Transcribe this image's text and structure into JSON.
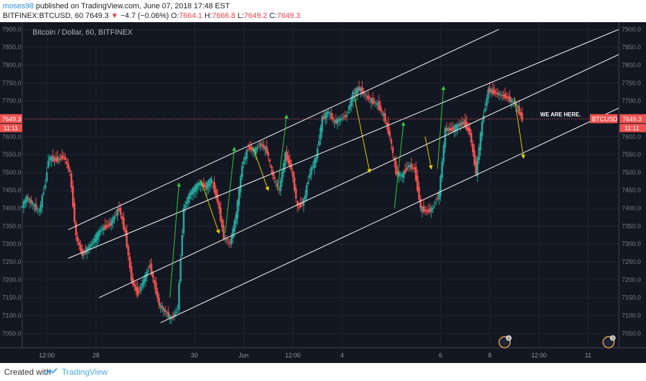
{
  "header": {
    "author": "moses98",
    "published_text": "published on TradingView.com, June 07, 2018 17:48 EST",
    "symbol": "BITFINEX:BTCUSD, 60",
    "price": "7649.3",
    "change_arrow": "▼",
    "change": "−4.7 (−0.06%)",
    "o_label": "O:",
    "o_value": "7664.1",
    "h_label": "H:",
    "h_value": "7666.8",
    "l_label": "L:",
    "l_value": "7649.2",
    "c_label": "C:",
    "c_value": "7649.3"
  },
  "footer": {
    "created_with": "Created with",
    "brand": "TradingView"
  },
  "colors": {
    "background": "#131722",
    "up": "#26a69a",
    "down": "#ef5350",
    "channel": "#ffffff",
    "green_arrow": "#2ecc40",
    "yellow_arrow": "#e5d200",
    "price_line": "#ef5350",
    "grid": "#1f2430"
  },
  "chart_data": {
    "type": "candlestick",
    "title": "Bitcoin / Dollar, 60, BITFINEX",
    "ylim": [
      7010,
      7920
    ],
    "y_ticks": [
      7050,
      7100,
      7150,
      7200,
      7250,
      7300,
      7350,
      7400,
      7450,
      7500,
      7550,
      7600,
      7650,
      7700,
      7750,
      7800,
      7850,
      7900
    ],
    "y_tick_labels": [
      "7050.0",
      "7100.0",
      "7150.0",
      "7200.0",
      "7250.0",
      "7300.0",
      "7350.0",
      "7400.0",
      "7450.0",
      "7500.0",
      "7550.0",
      "7600.0",
      "7650.0",
      "7700.0",
      "7750.0",
      "7800.0",
      "7850.0",
      "7900.0"
    ],
    "x_range": [
      0,
      194
    ],
    "x_ticks": [
      {
        "x": 8,
        "label": "12:00"
      },
      {
        "x": 24,
        "label": "28"
      },
      {
        "x": 56,
        "label": "30"
      },
      {
        "x": 72,
        "label": "Jun"
      },
      {
        "x": 88,
        "label": "12:00"
      },
      {
        "x": 104,
        "label": "4"
      },
      {
        "x": 136,
        "label": "6"
      },
      {
        "x": 152,
        "label": "8"
      },
      {
        "x": 168,
        "label": "12:00"
      },
      {
        "x": 184,
        "label": "11"
      }
    ],
    "last_price": 7649.3,
    "last_price_label": "7649.3",
    "countdown": "11:11",
    "symbol_tag": "BTCUSD",
    "annotation": "WE ARE HERE.",
    "event_badges": [
      "4",
      "3"
    ],
    "path_points": [
      [
        0,
        7400
      ],
      [
        2,
        7430
      ],
      [
        4,
        7410
      ],
      [
        6,
        7390
      ],
      [
        8,
        7470
      ],
      [
        9,
        7540
      ],
      [
        12,
        7535
      ],
      [
        14,
        7545
      ],
      [
        16,
        7500
      ],
      [
        18,
        7320
      ],
      [
        20,
        7270
      ],
      [
        23,
        7300
      ],
      [
        26,
        7340
      ],
      [
        29,
        7355
      ],
      [
        32,
        7400
      ],
      [
        34,
        7330
      ],
      [
        36,
        7200
      ],
      [
        38,
        7160
      ],
      [
        40,
        7200
      ],
      [
        42,
        7240
      ],
      [
        45,
        7130
      ],
      [
        47,
        7110
      ],
      [
        49,
        7090
      ],
      [
        51,
        7120
      ],
      [
        53,
        7400
      ],
      [
        55,
        7440
      ],
      [
        58,
        7470
      ],
      [
        60,
        7460
      ],
      [
        62,
        7480
      ],
      [
        64,
        7420
      ],
      [
        66,
        7320
      ],
      [
        68,
        7300
      ],
      [
        70,
        7380
      ],
      [
        72,
        7520
      ],
      [
        74,
        7570
      ],
      [
        76,
        7560
      ],
      [
        78,
        7580
      ],
      [
        80,
        7560
      ],
      [
        82,
        7490
      ],
      [
        84,
        7450
      ],
      [
        86,
        7550
      ],
      [
        88,
        7510
      ],
      [
        90,
        7400
      ],
      [
        92,
        7420
      ],
      [
        94,
        7500
      ],
      [
        96,
        7540
      ],
      [
        98,
        7650
      ],
      [
        100,
        7670
      ],
      [
        102,
        7640
      ],
      [
        104,
        7650
      ],
      [
        106,
        7660
      ],
      [
        108,
        7720
      ],
      [
        110,
        7735
      ],
      [
        112,
        7715
      ],
      [
        114,
        7700
      ],
      [
        116,
        7690
      ],
      [
        118,
        7660
      ],
      [
        120,
        7600
      ],
      [
        122,
        7500
      ],
      [
        124,
        7490
      ],
      [
        126,
        7520
      ],
      [
        128,
        7510
      ],
      [
        130,
        7400
      ],
      [
        132,
        7390
      ],
      [
        134,
        7400
      ],
      [
        136,
        7440
      ],
      [
        138,
        7620
      ],
      [
        140,
        7620
      ],
      [
        142,
        7630
      ],
      [
        144,
        7640
      ],
      [
        146,
        7610
      ],
      [
        148,
        7500
      ],
      [
        150,
        7640
      ],
      [
        152,
        7730
      ],
      [
        155,
        7720
      ],
      [
        158,
        7710
      ],
      [
        161,
        7690
      ],
      [
        163,
        7649.3
      ]
    ],
    "channel_lines": [
      {
        "x1": 15,
        "y1": 7340,
        "x2": 155,
        "y2": 7900
      },
      {
        "x1": 15,
        "y1": 7260,
        "x2": 194,
        "y2": 7900
      },
      {
        "x1": 25,
        "y1": 7150,
        "x2": 194,
        "y2": 7830
      },
      {
        "x1": 45,
        "y1": 7080,
        "x2": 194,
        "y2": 7680
      }
    ],
    "arrows": [
      {
        "color": "green",
        "x1": 48,
        "y1": 7150,
        "x2": 51,
        "y2": 7470
      },
      {
        "color": "yellow",
        "x1": 58,
        "y1": 7480,
        "x2": 64,
        "y2": 7330
      },
      {
        "color": "green",
        "x1": 66,
        "y1": 7330,
        "x2": 69,
        "y2": 7570
      },
      {
        "color": "yellow",
        "x1": 75,
        "y1": 7570,
        "x2": 80,
        "y2": 7450
      },
      {
        "color": "green",
        "x1": 83,
        "y1": 7450,
        "x2": 86,
        "y2": 7660
      },
      {
        "color": "yellow",
        "x1": 108,
        "y1": 7710,
        "x2": 113,
        "y2": 7500
      },
      {
        "color": "green",
        "x1": 121,
        "y1": 7400,
        "x2": 124,
        "y2": 7640
      },
      {
        "color": "yellow",
        "x1": 131,
        "y1": 7600,
        "x2": 133,
        "y2": 7510
      },
      {
        "color": "green",
        "x1": 135,
        "y1": 7510,
        "x2": 137,
        "y2": 7740
      },
      {
        "color": "yellow",
        "x1": 160,
        "y1": 7710,
        "x2": 163,
        "y2": 7540
      }
    ]
  }
}
